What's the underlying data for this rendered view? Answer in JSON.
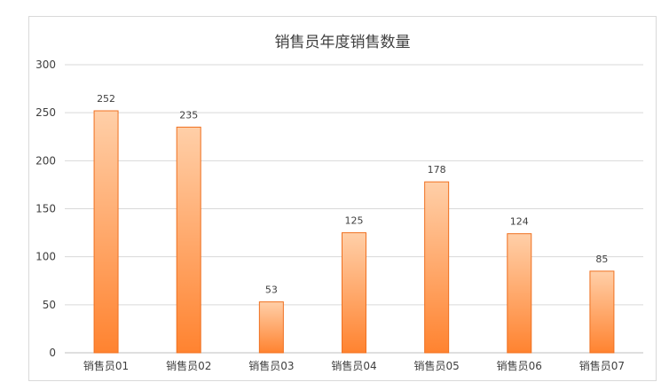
{
  "chart_data": {
    "type": "bar",
    "title": "销售员年度销售数量",
    "xlabel": "",
    "ylabel": "",
    "categories": [
      "销售员01",
      "销售员02",
      "销售员03",
      "销售员04",
      "销售员05",
      "销售员06",
      "销售员07"
    ],
    "values": [
      252,
      235,
      53,
      125,
      178,
      124,
      85
    ],
    "ylim": [
      0,
      300
    ],
    "yticks": [
      0,
      50,
      100,
      150,
      200,
      250,
      300
    ],
    "grid": true,
    "legend": "none",
    "data_labels": true,
    "colors": {
      "bar_top": "#ffcfa8",
      "bar_bottom": "#ff8330",
      "bar_border": "#f07020",
      "grid": "#d9d9d9",
      "axis": "#bfbfbf"
    }
  }
}
